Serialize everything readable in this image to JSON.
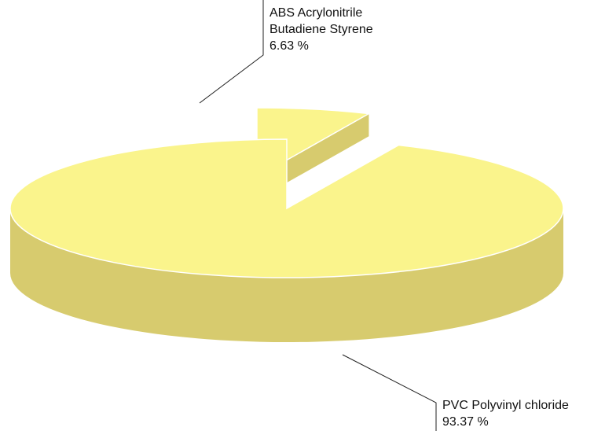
{
  "chart_data": {
    "type": "pie",
    "style": "3d-exploded",
    "slices": [
      {
        "name_lines": [
          "ABS Acrylonitrile",
          "Butadiene Styrene"
        ],
        "percent_label": "6.63 %",
        "value": 6.63,
        "color_top": "#FAF48C",
        "color_side": "#D7CB6E",
        "exploded": true
      },
      {
        "name_lines": [
          "PVC Polyvinyl chloride"
        ],
        "percent_label": "93.37 %",
        "value": 93.37,
        "color_top": "#FAF48C",
        "color_side": "#D7CB6E",
        "exploded": false
      }
    ]
  }
}
